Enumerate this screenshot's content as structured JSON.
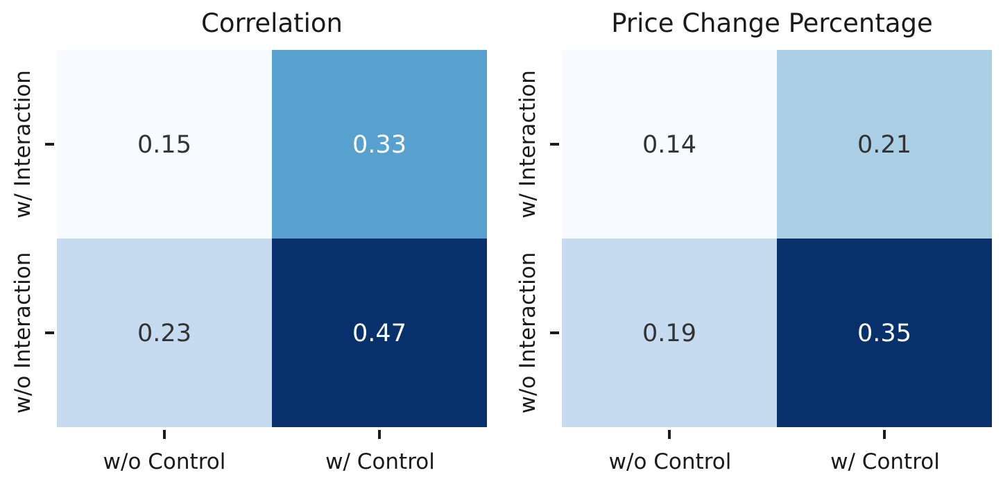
{
  "chart_data": [
    {
      "type": "heatmap",
      "title": "Correlation",
      "x_categories": [
        "w/o Control",
        "w/ Control"
      ],
      "y_categories": [
        "w/ Interaction",
        "w/o Interaction"
      ],
      "values": [
        [
          0.15,
          0.33
        ],
        [
          0.23,
          0.47
        ]
      ],
      "value_labels": [
        [
          "0.15",
          "0.33"
        ],
        [
          "0.23",
          "0.47"
        ]
      ],
      "colormap": "Blues",
      "colorbar": false,
      "grid": false,
      "cell_colors": [
        [
          "#f7fbff",
          "#58a1cf"
        ],
        [
          "#c6dbef",
          "#08306b"
        ]
      ],
      "label_colors": [
        [
          "#333333",
          "#ffffff"
        ],
        [
          "#333333",
          "#ffffff"
        ]
      ]
    },
    {
      "type": "heatmap",
      "title": "Price Change Percentage",
      "x_categories": [
        "w/o Control",
        "w/ Control"
      ],
      "y_categories": [
        "w/ Interaction",
        "w/o Interaction"
      ],
      "values": [
        [
          0.14,
          0.21
        ],
        [
          0.19,
          0.35
        ]
      ],
      "value_labels": [
        [
          "0.14",
          "0.21"
        ],
        [
          "0.19",
          "0.35"
        ]
      ],
      "colormap": "Blues",
      "colorbar": false,
      "grid": false,
      "cell_colors": [
        [
          "#f7fbff",
          "#abcfe5"
        ],
        [
          "#c6dbef",
          "#08306b"
        ]
      ],
      "label_colors": [
        [
          "#333333",
          "#333333"
        ],
        [
          "#333333",
          "#ffffff"
        ]
      ]
    }
  ]
}
